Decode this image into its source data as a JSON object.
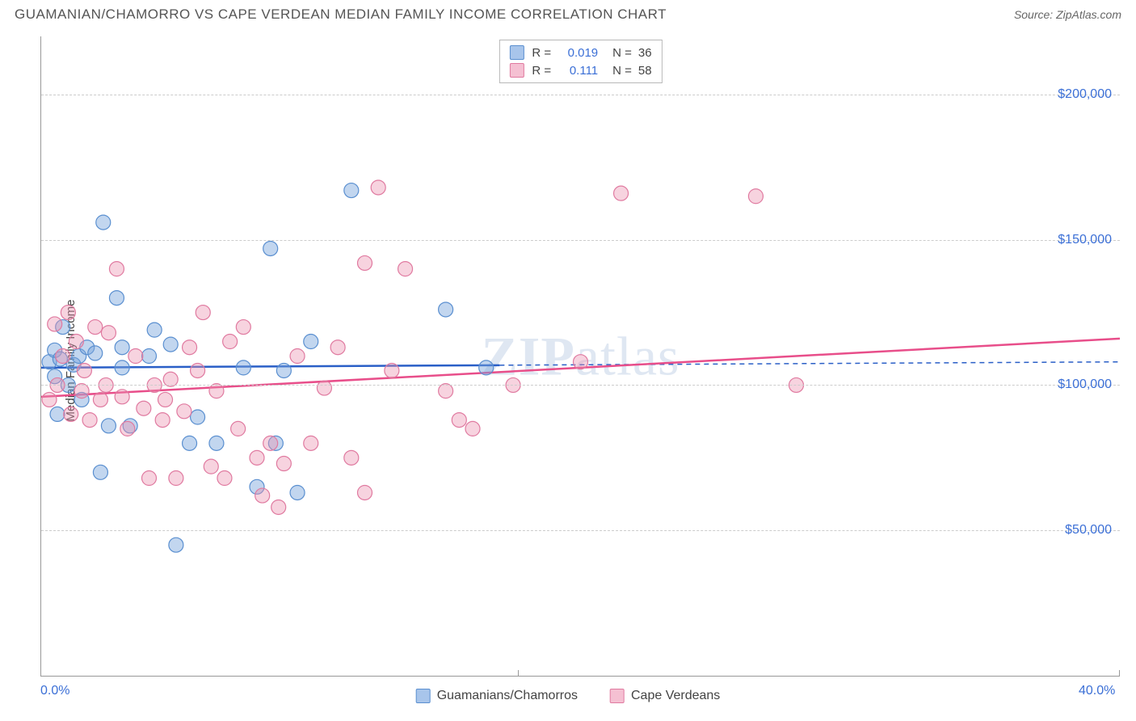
{
  "header": {
    "title": "GUAMANIAN/CHAMORRO VS CAPE VERDEAN MEDIAN FAMILY INCOME CORRELATION CHART",
    "source": "Source: ZipAtlas.com"
  },
  "chart": {
    "type": "scatter",
    "ylabel": "Median Family Income",
    "watermark": "ZIPatlas",
    "xlim": [
      0,
      40
    ],
    "ylim": [
      0,
      220000
    ],
    "x_format": "percent",
    "y_format": "currency",
    "y_gridlines": [
      50000,
      100000,
      150000,
      200000
    ],
    "y_tick_labels": [
      "$50,000",
      "$100,000",
      "$150,000",
      "$200,000"
    ],
    "x_ticks": [
      0,
      40
    ],
    "x_tick_labels": [
      "0.0%",
      "40.0%"
    ],
    "x_minor_tick": 17.7,
    "background_color": "#ffffff",
    "grid_color": "#cccccc",
    "axis_color": "#999999",
    "tick_label_color": "#3b6fd6",
    "marker_radius": 9,
    "marker_opacity": 0.55,
    "series": [
      {
        "name": "Guamanians/Chamorros",
        "color_fill": "rgba(120,165,220,0.45)",
        "color_stroke": "#5a8fd0",
        "swatch_fill": "#a8c5eb",
        "swatch_stroke": "#5a8fd0",
        "r_value": "0.019",
        "n_value": "36",
        "trend": {
          "y_at_xmin": 106000,
          "y_at_xmax": 108000,
          "x_solid_end": 17,
          "color": "#2a5fc7",
          "width": 2.5
        },
        "points": [
          [
            0.3,
            108000
          ],
          [
            0.5,
            103000
          ],
          [
            0.5,
            112000
          ],
          [
            0.6,
            90000
          ],
          [
            0.7,
            109000
          ],
          [
            0.8,
            120000
          ],
          [
            1.0,
            100000
          ],
          [
            1.2,
            107000
          ],
          [
            1.4,
            110000
          ],
          [
            1.5,
            95000
          ],
          [
            1.7,
            113000
          ],
          [
            2.0,
            111000
          ],
          [
            2.2,
            70000
          ],
          [
            2.3,
            156000
          ],
          [
            2.5,
            86000
          ],
          [
            2.8,
            130000
          ],
          [
            3.0,
            106000
          ],
          [
            3.0,
            113000
          ],
          [
            3.3,
            86000
          ],
          [
            4.0,
            110000
          ],
          [
            4.2,
            119000
          ],
          [
            4.8,
            114000
          ],
          [
            5.0,
            45000
          ],
          [
            5.5,
            80000
          ],
          [
            5.8,
            89000
          ],
          [
            6.5,
            80000
          ],
          [
            7.5,
            106000
          ],
          [
            8.0,
            65000
          ],
          [
            8.5,
            147000
          ],
          [
            8.7,
            80000
          ],
          [
            9.0,
            105000
          ],
          [
            9.5,
            63000
          ],
          [
            10.0,
            115000
          ],
          [
            11.5,
            167000
          ],
          [
            15.0,
            126000
          ],
          [
            16.5,
            106000
          ]
        ]
      },
      {
        "name": "Cape Verdeans",
        "color_fill": "rgba(235,145,175,0.40)",
        "color_stroke": "#e07aa0",
        "swatch_fill": "#f5c0d2",
        "swatch_stroke": "#e07aa0",
        "r_value": "0.111",
        "n_value": "58",
        "trend": {
          "y_at_xmin": 96000,
          "y_at_xmax": 116000,
          "x_solid_end": 40,
          "color": "#e84e8a",
          "width": 2.5
        },
        "points": [
          [
            0.3,
            95000
          ],
          [
            0.5,
            121000
          ],
          [
            0.6,
            100000
          ],
          [
            0.8,
            110000
          ],
          [
            1.0,
            125000
          ],
          [
            1.1,
            90000
          ],
          [
            1.3,
            115000
          ],
          [
            1.5,
            98000
          ],
          [
            1.6,
            105000
          ],
          [
            1.8,
            88000
          ],
          [
            2.0,
            120000
          ],
          [
            2.2,
            95000
          ],
          [
            2.4,
            100000
          ],
          [
            2.5,
            118000
          ],
          [
            2.8,
            140000
          ],
          [
            3.0,
            96000
          ],
          [
            3.2,
            85000
          ],
          [
            3.5,
            110000
          ],
          [
            3.8,
            92000
          ],
          [
            4.0,
            68000
          ],
          [
            4.2,
            100000
          ],
          [
            4.5,
            88000
          ],
          [
            4.6,
            95000
          ],
          [
            4.8,
            102000
          ],
          [
            5.0,
            68000
          ],
          [
            5.3,
            91000
          ],
          [
            5.5,
            113000
          ],
          [
            5.8,
            105000
          ],
          [
            6.0,
            125000
          ],
          [
            6.3,
            72000
          ],
          [
            6.5,
            98000
          ],
          [
            6.8,
            68000
          ],
          [
            7.0,
            115000
          ],
          [
            7.3,
            85000
          ],
          [
            7.5,
            120000
          ],
          [
            8.0,
            75000
          ],
          [
            8.2,
            62000
          ],
          [
            8.5,
            80000
          ],
          [
            8.8,
            58000
          ],
          [
            9.0,
            73000
          ],
          [
            9.5,
            110000
          ],
          [
            10.0,
            80000
          ],
          [
            10.5,
            99000
          ],
          [
            11.0,
            113000
          ],
          [
            11.5,
            75000
          ],
          [
            12.0,
            142000
          ],
          [
            12.0,
            63000
          ],
          [
            12.5,
            168000
          ],
          [
            13.0,
            105000
          ],
          [
            13.5,
            140000
          ],
          [
            15.0,
            98000
          ],
          [
            15.5,
            88000
          ],
          [
            16.0,
            85000
          ],
          [
            17.5,
            100000
          ],
          [
            20.0,
            108000
          ],
          [
            21.5,
            166000
          ],
          [
            26.5,
            165000
          ],
          [
            28.0,
            100000
          ]
        ]
      }
    ]
  },
  "legend_bottom": [
    {
      "label": "Guamanians/Chamorros",
      "series_index": 0
    },
    {
      "label": "Cape Verdeans",
      "series_index": 1
    }
  ]
}
